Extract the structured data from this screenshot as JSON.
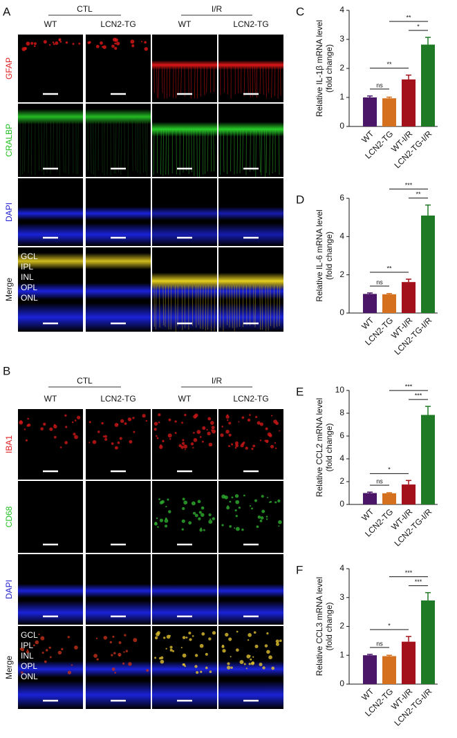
{
  "panel_a": {
    "label": "A",
    "groups": [
      "CTL",
      "I/R"
    ],
    "columns": [
      "WT",
      "LCN2-TG",
      "WT",
      "LCN2-TG"
    ],
    "rows": [
      "GFAP",
      "CRALBP",
      "DAPI",
      "Merge"
    ],
    "layers": [
      "GCL",
      "IPL",
      "INL",
      "OPL",
      "ONL"
    ]
  },
  "panel_b": {
    "label": "B",
    "groups": [
      "CTL",
      "I/R"
    ],
    "columns": [
      "WT",
      "LCN2-TG",
      "WT",
      "LCN2-TG"
    ],
    "rows": [
      "IBA1",
      "CD68",
      "DAPI",
      "Merge"
    ],
    "layers": [
      "GCL",
      "IPL",
      "INL",
      "OPL",
      "ONL"
    ]
  },
  "chart_data": [
    {
      "type": "bar",
      "panel": "C",
      "ylabel": [
        "Relative IL-1β mRNA level",
        "(fold change)"
      ],
      "categories": [
        "WT",
        "LCN2-TG",
        "WT-I/R",
        "LCN2-TG-I/R"
      ],
      "values": [
        1.0,
        0.97,
        1.62,
        2.82
      ],
      "errors": [
        0.05,
        0.04,
        0.15,
        0.25
      ],
      "colors": [
        "#4b1668",
        "#d4701e",
        "#a3121a",
        "#1e7a25"
      ],
      "ylim": [
        0,
        4
      ],
      "yticks": [
        0,
        1,
        2,
        3,
        4
      ],
      "annotations": [
        {
          "label": "ns",
          "groups": [
            "WT",
            "LCN2-TG"
          ]
        },
        {
          "label": "**",
          "groups": [
            "WT",
            "WT-I/R"
          ]
        },
        {
          "label": "*",
          "groups": [
            "WT-I/R",
            "LCN2-TG-I/R"
          ]
        },
        {
          "label": "**",
          "groups": [
            "LCN2-TG",
            "LCN2-TG-I/R"
          ]
        }
      ]
    },
    {
      "type": "bar",
      "panel": "D",
      "ylabel": [
        "Relative IL-6 mRNA level",
        "(fold change)"
      ],
      "categories": [
        "WT",
        "LCN2-TG",
        "WT-I/R",
        "LCN2-TG-I/R"
      ],
      "values": [
        1.0,
        0.98,
        1.62,
        5.1
      ],
      "errors": [
        0.05,
        0.04,
        0.15,
        0.55
      ],
      "colors": [
        "#4b1668",
        "#d4701e",
        "#a3121a",
        "#1e7a25"
      ],
      "ylim": [
        0,
        6
      ],
      "yticks": [
        0,
        2,
        4,
        6
      ],
      "annotations": [
        {
          "label": "ns",
          "groups": [
            "WT",
            "LCN2-TG"
          ]
        },
        {
          "label": "**",
          "groups": [
            "WT",
            "WT-I/R"
          ]
        },
        {
          "label": "**",
          "groups": [
            "WT-I/R",
            "LCN2-TG-I/R"
          ]
        },
        {
          "label": "***",
          "groups": [
            "LCN2-TG",
            "LCN2-TG-I/R"
          ]
        }
      ]
    },
    {
      "type": "bar",
      "panel": "E",
      "ylabel": [
        "Relative CCL2 mRNA level",
        "(fold change)"
      ],
      "categories": [
        "WT",
        "LCN2-TG",
        "WT-I/R",
        "LCN2-TG-I/R"
      ],
      "values": [
        1.0,
        0.98,
        1.75,
        7.85
      ],
      "errors": [
        0.08,
        0.05,
        0.35,
        0.75
      ],
      "colors": [
        "#4b1668",
        "#d4701e",
        "#a3121a",
        "#1e7a25"
      ],
      "ylim": [
        0,
        10
      ],
      "yticks": [
        0,
        2,
        4,
        6,
        8,
        10
      ],
      "annotations": [
        {
          "label": "ns",
          "groups": [
            "WT",
            "LCN2-TG"
          ]
        },
        {
          "label": "*",
          "groups": [
            "WT",
            "WT-I/R"
          ]
        },
        {
          "label": "***",
          "groups": [
            "WT-I/R",
            "LCN2-TG-I/R"
          ]
        },
        {
          "label": "***",
          "groups": [
            "LCN2-TG",
            "LCN2-TG-I/R"
          ]
        }
      ]
    },
    {
      "type": "bar",
      "panel": "F",
      "ylabel": [
        "Relative CCL3 mRNA level",
        "(fold change)"
      ],
      "categories": [
        "WT",
        "LCN2-TG",
        "WT-I/R",
        "LCN2-TG-I/R"
      ],
      "values": [
        1.0,
        0.97,
        1.47,
        2.9
      ],
      "errors": [
        0.03,
        0.03,
        0.18,
        0.27
      ],
      "colors": [
        "#4b1668",
        "#d4701e",
        "#a3121a",
        "#1e7a25"
      ],
      "ylim": [
        0,
        4
      ],
      "yticks": [
        0,
        1,
        2,
        3,
        4
      ],
      "annotations": [
        {
          "label": "ns",
          "groups": [
            "WT",
            "LCN2-TG"
          ]
        },
        {
          "label": "*",
          "groups": [
            "WT",
            "WT-I/R"
          ]
        },
        {
          "label": "***",
          "groups": [
            "WT-I/R",
            "LCN2-TG-I/R"
          ]
        },
        {
          "label": "***",
          "groups": [
            "LCN2-TG",
            "LCN2-TG-I/R"
          ]
        }
      ]
    }
  ]
}
